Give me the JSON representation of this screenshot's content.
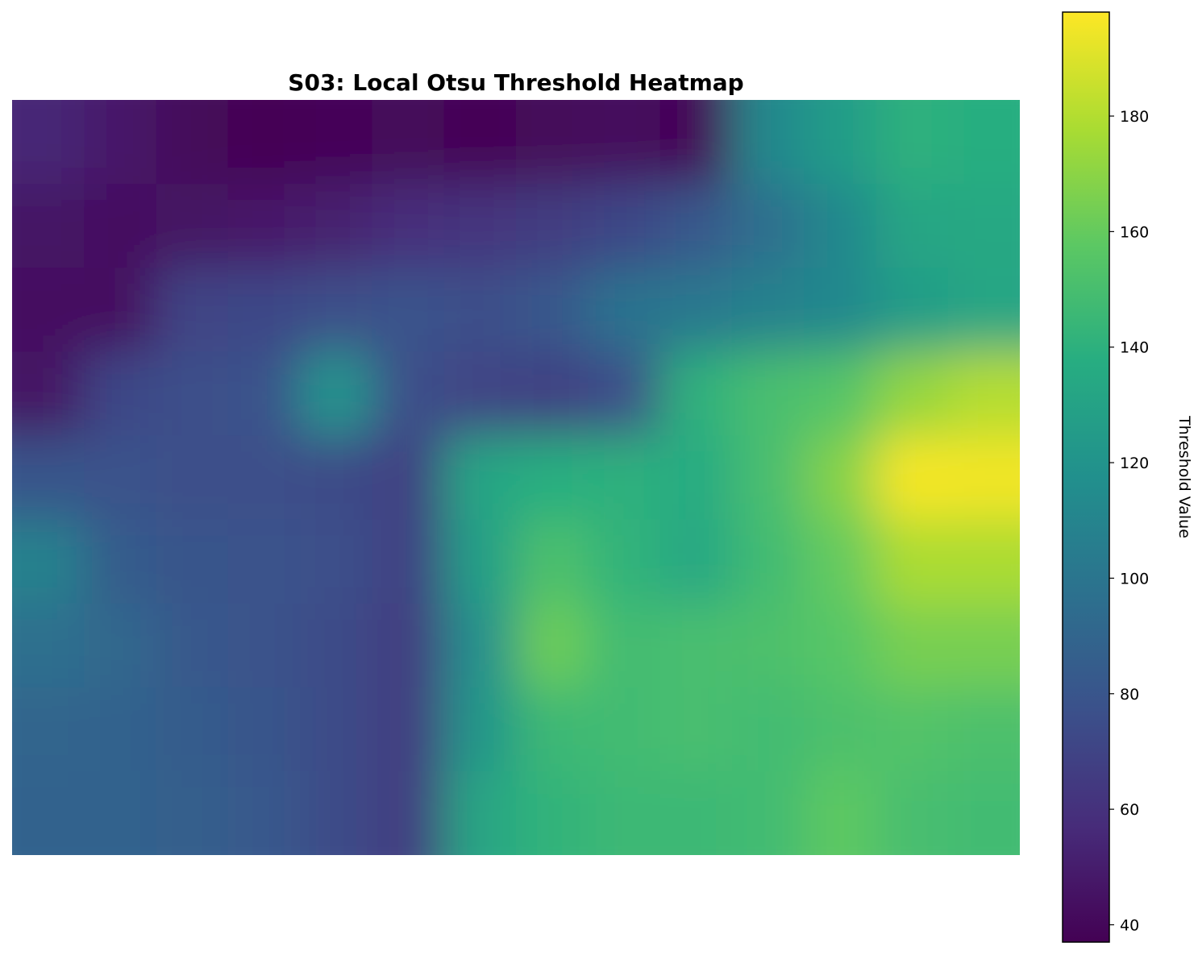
{
  "chart_data": {
    "type": "heatmap",
    "title": "S03: Local Otsu Threshold Heatmap",
    "xlabel": "",
    "ylabel": "",
    "axes_visible": false,
    "colormap": "viridis",
    "colorbar": {
      "label": "Threshold Value",
      "range": [
        37,
        198
      ],
      "ticks": [
        40,
        60,
        80,
        100,
        120,
        140,
        160,
        180
      ]
    },
    "grid_rows": 9,
    "grid_cols": 14,
    "values": [
      [
        55,
        48,
        40,
        37,
        39,
        40,
        38,
        40,
        42,
        39,
        112,
        126,
        140,
        138
      ],
      [
        46,
        44,
        45,
        48,
        52,
        58,
        62,
        66,
        72,
        82,
        96,
        112,
        132,
        134
      ],
      [
        44,
        44,
        70,
        72,
        76,
        78,
        76,
        82,
        98,
        102,
        108,
        112,
        126,
        132
      ],
      [
        46,
        72,
        76,
        78,
        120,
        76,
        70,
        68,
        76,
        140,
        150,
        155,
        172,
        180
      ],
      [
        80,
        78,
        76,
        76,
        74,
        68,
        132,
        138,
        140,
        136,
        150,
        168,
        196,
        195
      ],
      [
        108,
        84,
        80,
        78,
        76,
        68,
        128,
        152,
        142,
        134,
        148,
        160,
        178,
        178
      ],
      [
        96,
        92,
        82,
        78,
        74,
        66,
        118,
        162,
        148,
        150,
        152,
        156,
        165,
        165
      ],
      [
        90,
        88,
        84,
        80,
        74,
        66,
        122,
        146,
        148,
        150,
        148,
        152,
        154,
        152
      ],
      [
        88,
        88,
        86,
        82,
        74,
        66,
        132,
        142,
        146,
        146,
        148,
        158,
        150,
        148
      ]
    ]
  },
  "colors": {
    "background": "#ffffff",
    "colorbar_border": "#000000"
  }
}
